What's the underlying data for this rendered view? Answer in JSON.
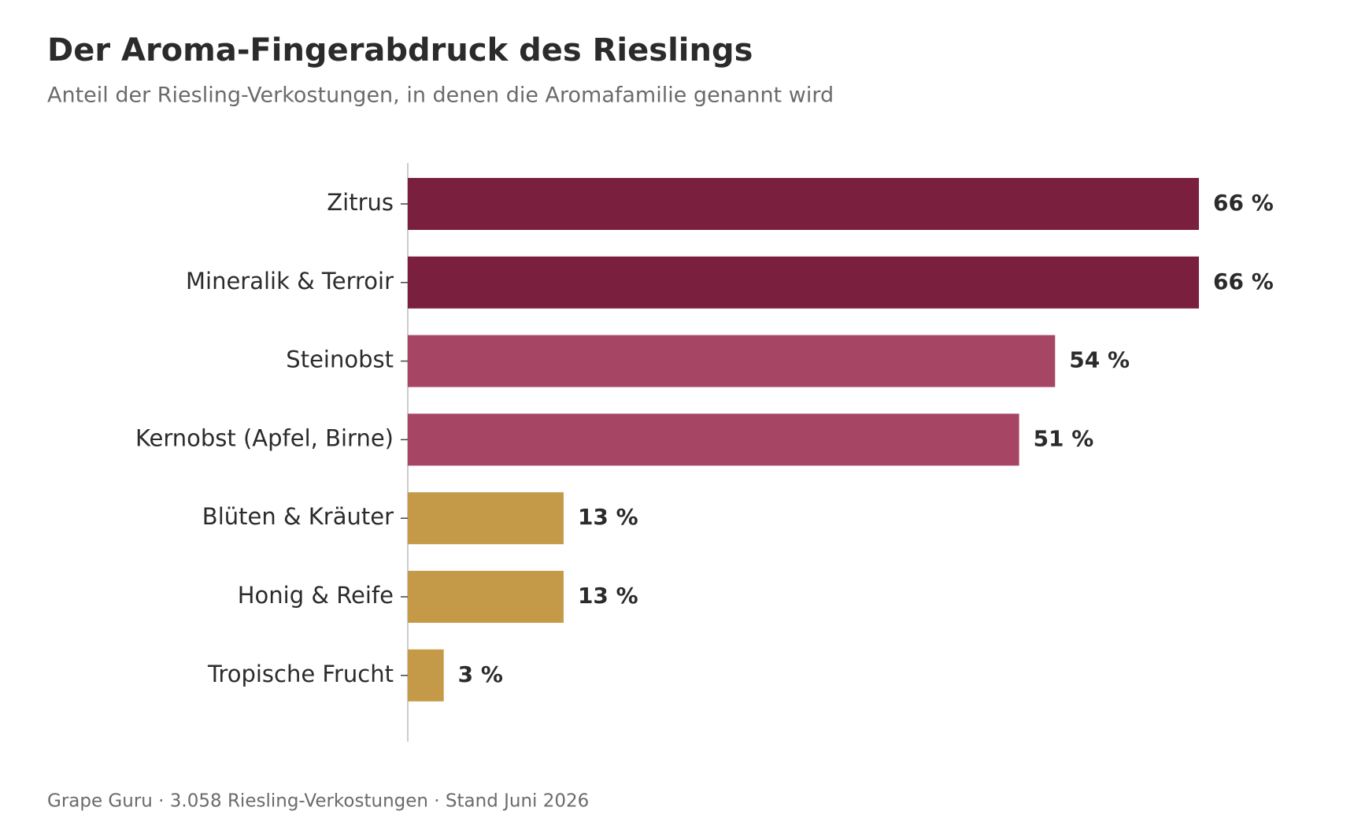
{
  "chart_data": {
    "type": "hbar",
    "title": "Der Aroma-Fingerabdruck des Rieslings",
    "subtitle": "Anteil der Riesling-Verkostungen, in denen die Aromafamilie genannt wird",
    "footer": "Grape Guru · 3.058 Riesling-Verkostungen · Stand Juni 2026",
    "categories": [
      "Zitrus",
      "Mineralik & Terroir",
      "Steinobst",
      "Kernobst (Apfel, Birne)",
      "Blüten & Kräuter",
      "Honig & Reife",
      "Tropische Frucht"
    ],
    "values": [
      66,
      66,
      54,
      51,
      13,
      13,
      3
    ],
    "value_labels": [
      "66 %",
      "66 %",
      "54 %",
      "51 %",
      "13 %",
      "13 %",
      "3 %"
    ],
    "colors": [
      "#7a1f3d",
      "#7a1f3d",
      "#a64564",
      "#a64564",
      "#c49a48",
      "#c49a48",
      "#c49a48"
    ],
    "xlim": [
      0,
      73
    ]
  }
}
